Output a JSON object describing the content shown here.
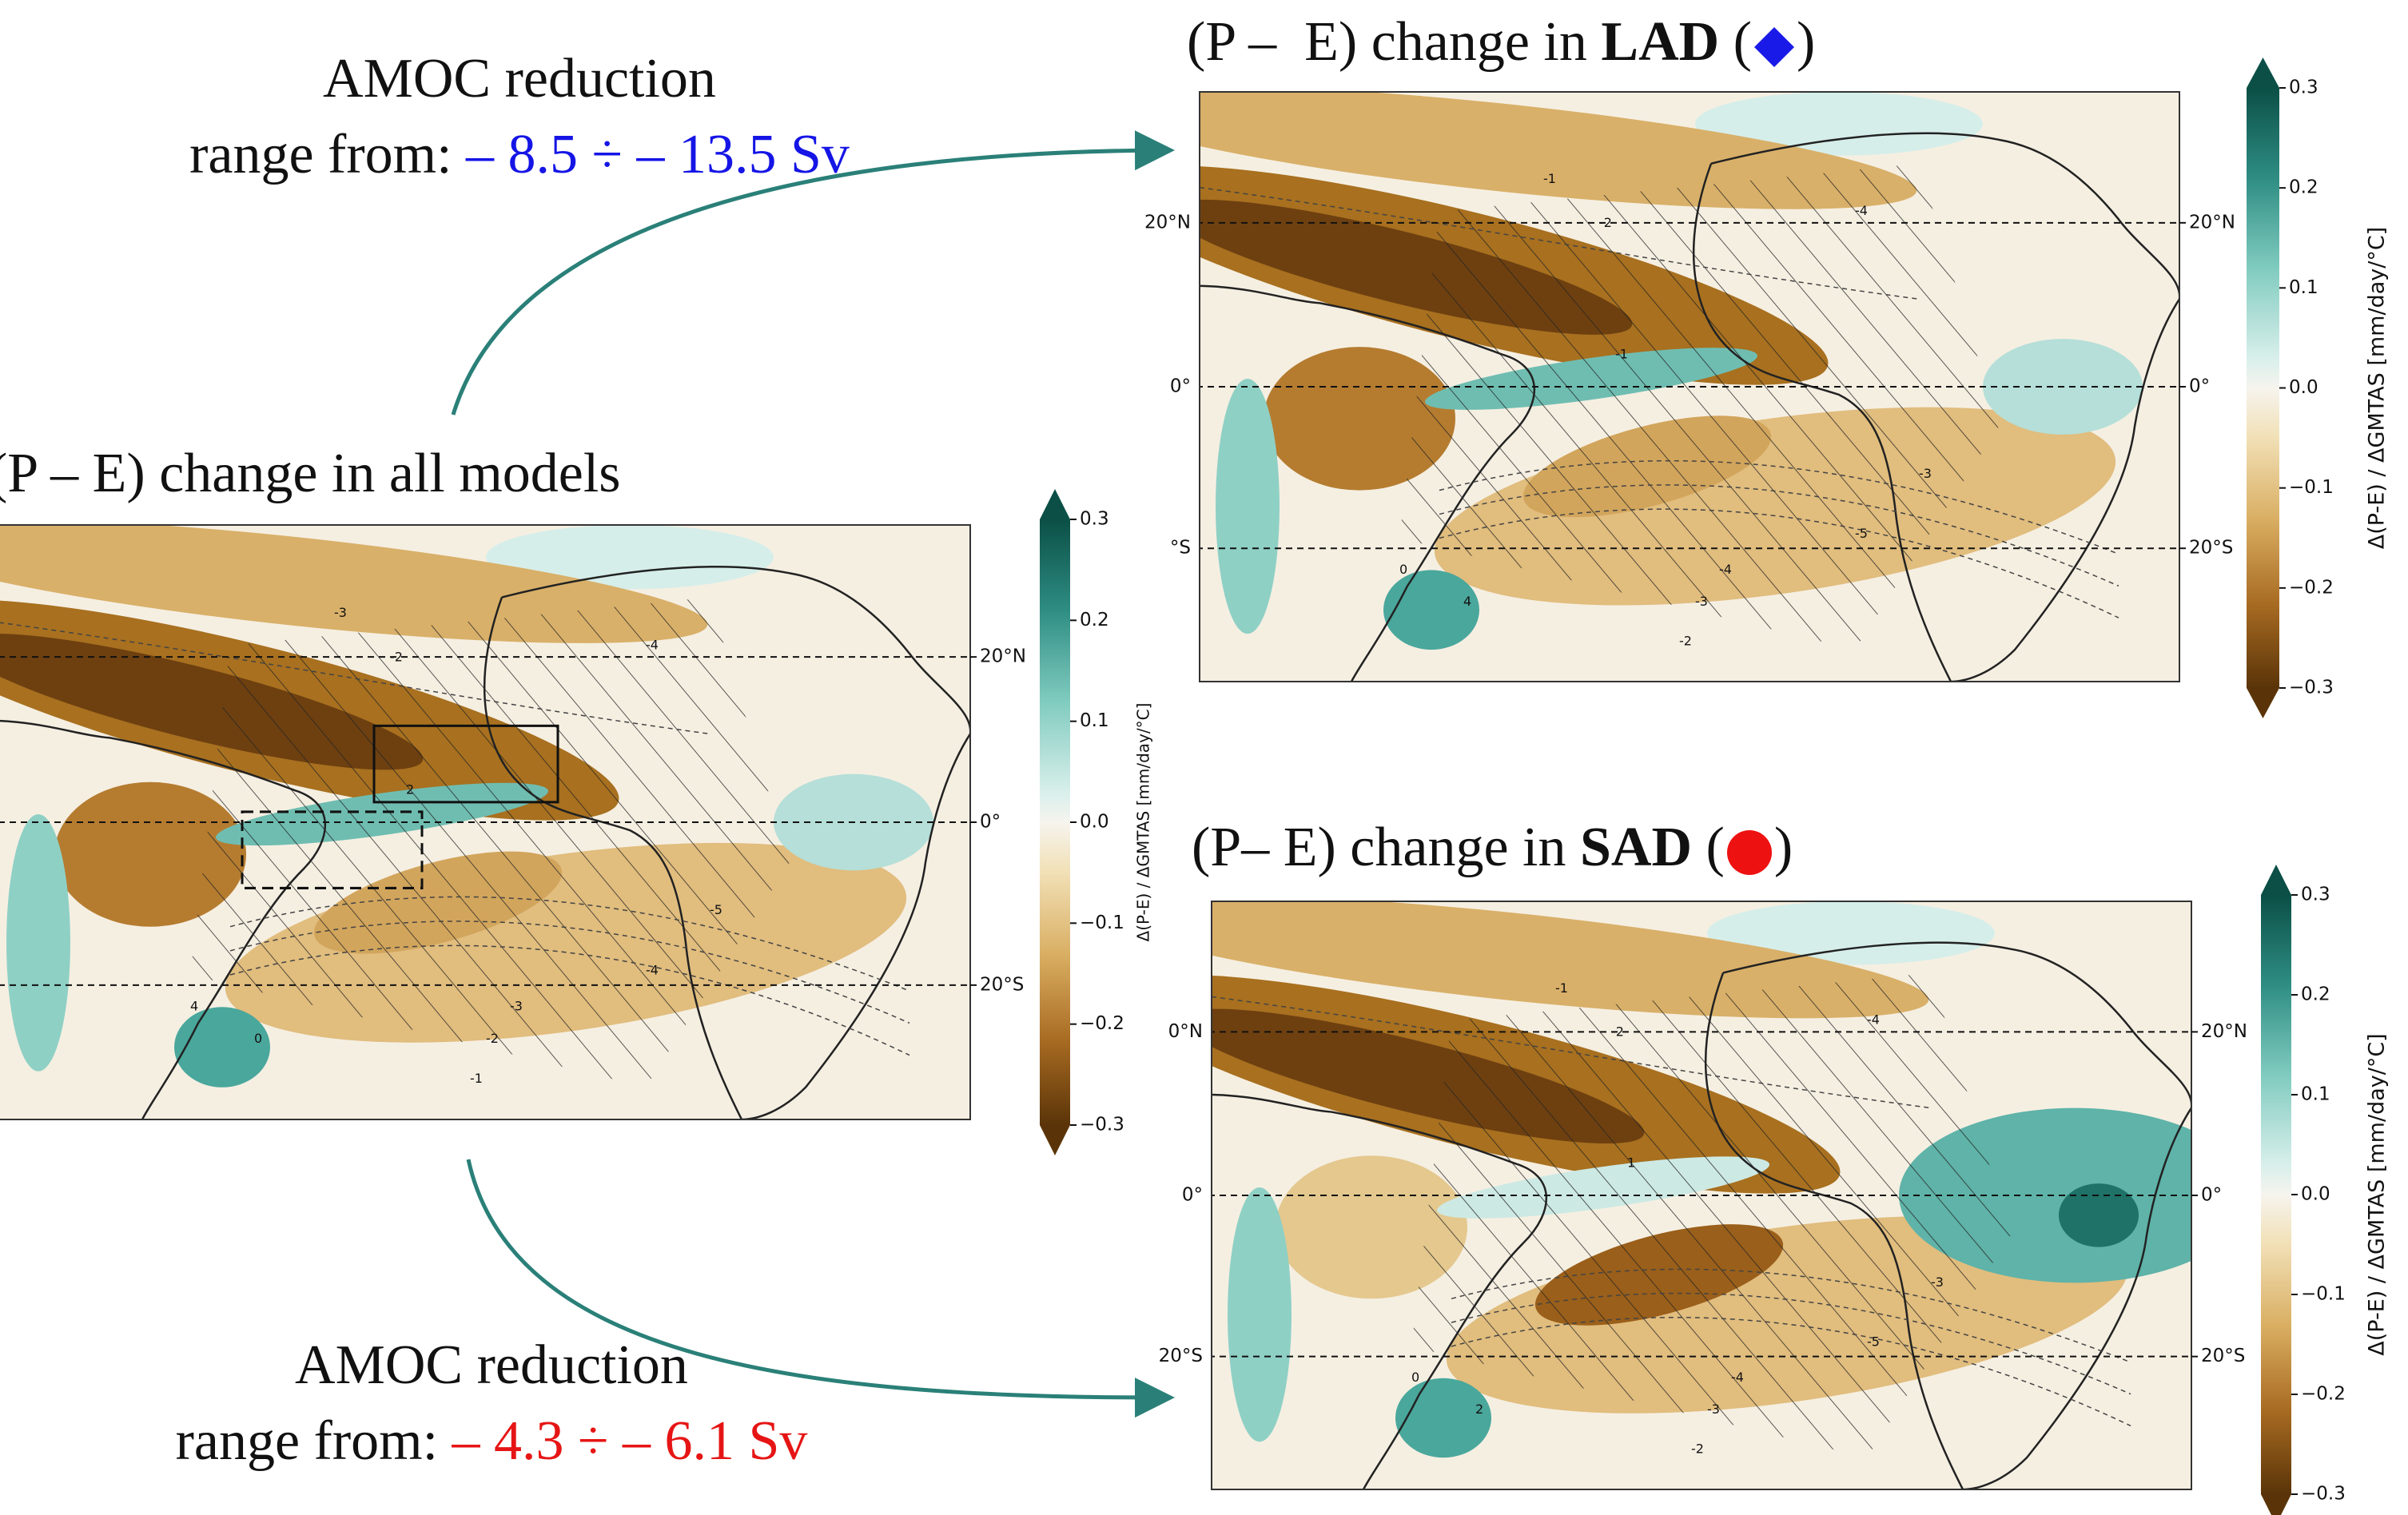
{
  "panels": [
    {
      "title": {
        "text": "(P – E) change in all models"
      },
      "lat_labels": [
        "20°N",
        "0°",
        "20°S"
      ],
      "contour_labels": [
        "-3",
        "-2",
        "-4",
        "2",
        "-5",
        "-4",
        "-3",
        "-2",
        "-1",
        "4",
        "0"
      ],
      "colorbar": {
        "label": "Δ(P-E) / ΔGMTAS [mm/day/°C]",
        "ticks": [
          "0.3",
          "0.2",
          "0.1",
          "0.0",
          "−0.1",
          "−0.2",
          "−0.3"
        ]
      }
    },
    {
      "title": {
        "prefix": "(P –  E) change in ",
        "bold": "LAD",
        "open": " (",
        "close": ")"
      },
      "lat_labels": [
        "20°N",
        "0°",
        "20°S"
      ],
      "left_lat_labels": [
        "20°N",
        "0°",
        "°S"
      ],
      "contour_labels": [
        "-1",
        "-2",
        "-4",
        "-1",
        "-3",
        "-5",
        "-4",
        "-3",
        "-2",
        "0",
        "4"
      ],
      "colorbar": {
        "label": "Δ(P-E) / ΔGMTAS [mm/day/°C]",
        "ticks": [
          "0.3",
          "0.2",
          "0.1",
          "0.0",
          "−0.1",
          "−0.2",
          "−0.3"
        ]
      }
    },
    {
      "title": {
        "prefix": "(P– E) change in ",
        "bold": "SAD",
        "open": " (",
        "close": ")"
      },
      "lat_labels": [
        "20°N",
        "0°",
        "20°S"
      ],
      "left_lat_labels": [
        "0°N",
        "0°",
        "20°S"
      ],
      "contour_labels": [
        "-1",
        "-2",
        "-4",
        "1",
        "-3",
        "-5",
        "-4",
        "-3",
        "-2",
        "0",
        "2"
      ],
      "colorbar": {
        "label": "Δ(P-E) / ΔGMTAS [mm/day/°C]",
        "ticks": [
          "0.3",
          "0.2",
          "0.1",
          "0.0",
          "−0.1",
          "−0.2",
          "−0.3"
        ]
      }
    }
  ],
  "annotations": [
    {
      "line1": "AMOC reduction",
      "label": "range from:",
      "range": "– 8.5 ÷ – 13.5 Sv",
      "color": "#1515e6"
    },
    {
      "line1": "AMOC reduction",
      "label": "range from:",
      "range": "– 4.3 ÷ – 6.1 Sv",
      "color": "#e61515"
    }
  ]
}
